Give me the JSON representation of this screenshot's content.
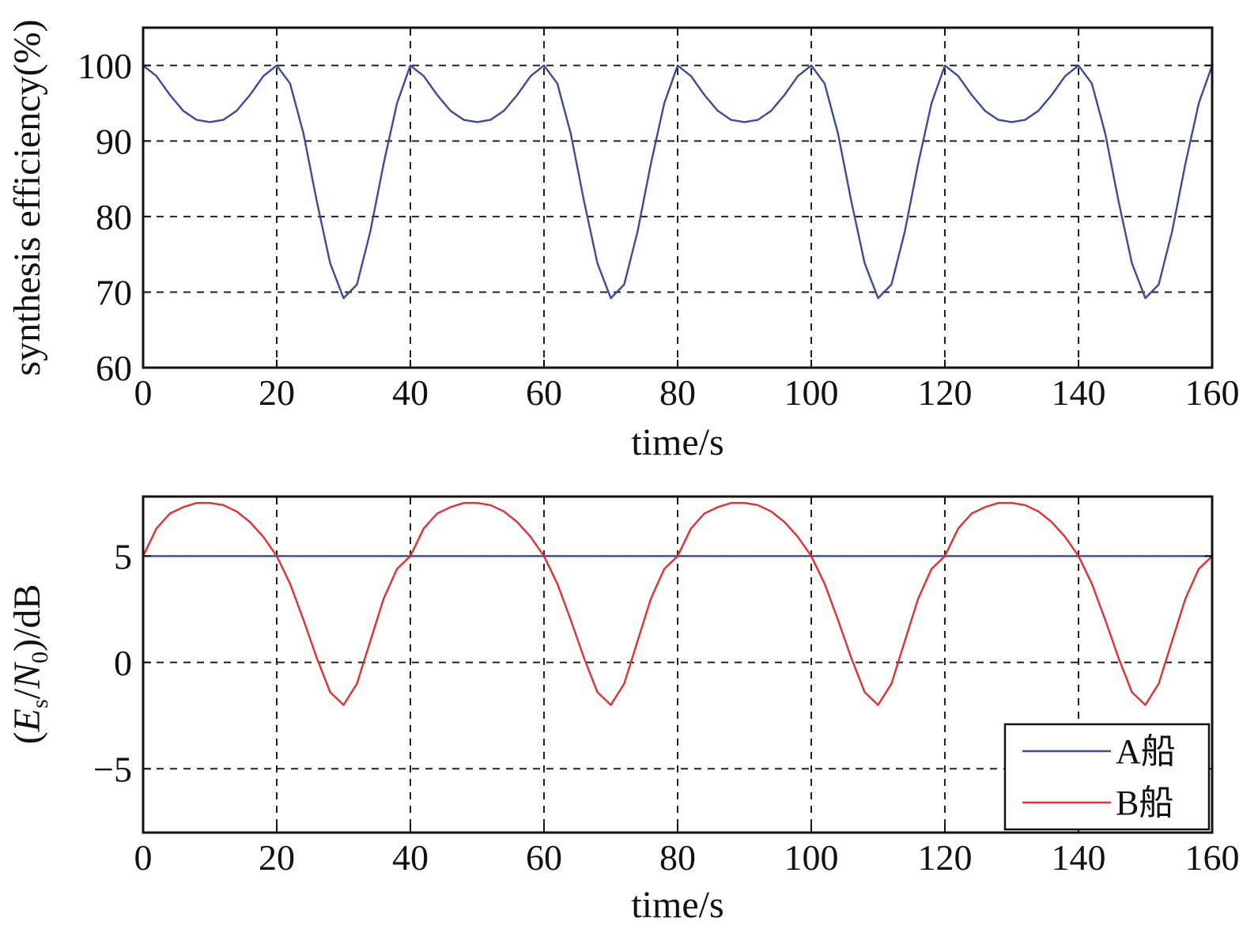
{
  "chart_data": [
    {
      "type": "line",
      "xlabel": "time/s",
      "ylabel": "synthesis efficiency(%)",
      "xlim": [
        0,
        160
      ],
      "ylim": [
        60,
        105
      ],
      "xticks": [
        0,
        20,
        40,
        60,
        80,
        100,
        120,
        140,
        160
      ],
      "xtick_labels": [
        "0",
        "20",
        "40",
        "60",
        "80",
        "100",
        "120",
        "140",
        "160"
      ],
      "yticks": [
        60,
        70,
        80,
        90,
        100
      ],
      "ytick_labels": [
        "60",
        "70",
        "80",
        "90",
        "100"
      ],
      "grid": true,
      "series": [
        {
          "color": "#3b4a9a",
          "x": [
            0,
            2,
            4,
            6,
            8,
            10,
            12,
            14,
            16,
            18,
            20,
            22,
            24,
            26,
            28,
            30,
            32,
            34,
            36,
            38,
            40,
            42,
            44,
            46,
            48,
            50,
            52,
            54,
            56,
            58,
            60,
            62,
            64,
            66,
            68,
            70,
            72,
            74,
            76,
            78,
            80,
            82,
            84,
            86,
            88,
            90,
            92,
            94,
            96,
            98,
            100,
            102,
            104,
            106,
            108,
            110,
            112,
            114,
            116,
            118,
            120,
            122,
            124,
            126,
            128,
            130,
            132,
            134,
            136,
            138,
            140,
            142,
            144,
            146,
            148,
            150,
            152,
            154,
            156,
            158,
            160
          ],
          "y": [
            100,
            98.6,
            96.1,
            94,
            92.8,
            92.5,
            92.8,
            94,
            96.1,
            98.6,
            100,
            97.6,
            91,
            82,
            73.8,
            69.2,
            71,
            78,
            87,
            95,
            100,
            98.6,
            96.1,
            94,
            92.8,
            92.5,
            92.8,
            94,
            96.1,
            98.6,
            100,
            97.6,
            91,
            82,
            73.8,
            69.2,
            71,
            78,
            87,
            95,
            100,
            98.6,
            96.1,
            94,
            92.8,
            92.5,
            92.8,
            94,
            96.1,
            98.6,
            100,
            97.6,
            91,
            82,
            73.8,
            69.2,
            71,
            78,
            87,
            95,
            100,
            98.6,
            96.1,
            94,
            92.8,
            92.5,
            92.8,
            94,
            96.1,
            98.6,
            100,
            97.6,
            91,
            82,
            73.8,
            69.2,
            71,
            78,
            87,
            95,
            100
          ]
        }
      ]
    },
    {
      "type": "line",
      "xlabel": "time/s",
      "ylabel": "(Es/N0)/dB",
      "xlim": [
        0,
        160
      ],
      "ylim": [
        -8,
        7.8
      ],
      "xticks": [
        0,
        20,
        40,
        60,
        80,
        100,
        120,
        140,
        160
      ],
      "xtick_labels": [
        "0",
        "20",
        "40",
        "60",
        "80",
        "100",
        "120",
        "140",
        "160"
      ],
      "yticks": [
        -5,
        0,
        5
      ],
      "ytick_labels": [
        "−5",
        "0",
        "5"
      ],
      "grid": true,
      "legend_position": "bottom-right",
      "series": [
        {
          "name": "A船",
          "color": "#3b4a9a",
          "x": [
            0,
            160
          ],
          "y": [
            5,
            5
          ]
        },
        {
          "name": "B船",
          "color": "#e03030",
          "x": [
            0,
            2,
            4,
            6,
            8,
            10,
            12,
            14,
            16,
            18,
            20,
            22,
            24,
            26,
            28,
            30,
            32,
            34,
            36,
            38,
            40,
            42,
            44,
            46,
            48,
            50,
            52,
            54,
            56,
            58,
            60,
            62,
            64,
            66,
            68,
            70,
            72,
            74,
            76,
            78,
            80,
            82,
            84,
            86,
            88,
            90,
            92,
            94,
            96,
            98,
            100,
            102,
            104,
            106,
            108,
            110,
            112,
            114,
            116,
            118,
            120,
            122,
            124,
            126,
            128,
            130,
            132,
            134,
            136,
            138,
            140,
            142,
            144,
            146,
            148,
            150,
            152,
            154,
            156,
            158,
            160
          ],
          "y": [
            5,
            6.3,
            7,
            7.3,
            7.5,
            7.5,
            7.4,
            7.1,
            6.6,
            5.9,
            5,
            3.7,
            2,
            0.2,
            -1.4,
            -2,
            -1,
            1,
            3,
            4.4,
            5,
            6.3,
            7,
            7.3,
            7.5,
            7.5,
            7.4,
            7.1,
            6.6,
            5.9,
            5,
            3.7,
            2,
            0.2,
            -1.4,
            -2,
            -1,
            1,
            3,
            4.4,
            5,
            6.3,
            7,
            7.3,
            7.5,
            7.5,
            7.4,
            7.1,
            6.6,
            5.9,
            5,
            3.7,
            2,
            0.2,
            -1.4,
            -2,
            -1,
            1,
            3,
            4.4,
            5,
            6.3,
            7,
            7.3,
            7.5,
            7.5,
            7.4,
            7.1,
            6.6,
            5.9,
            5,
            3.7,
            2,
            0.2,
            -1.4,
            -2,
            -1,
            1,
            3,
            4.4,
            5
          ]
        }
      ]
    }
  ]
}
